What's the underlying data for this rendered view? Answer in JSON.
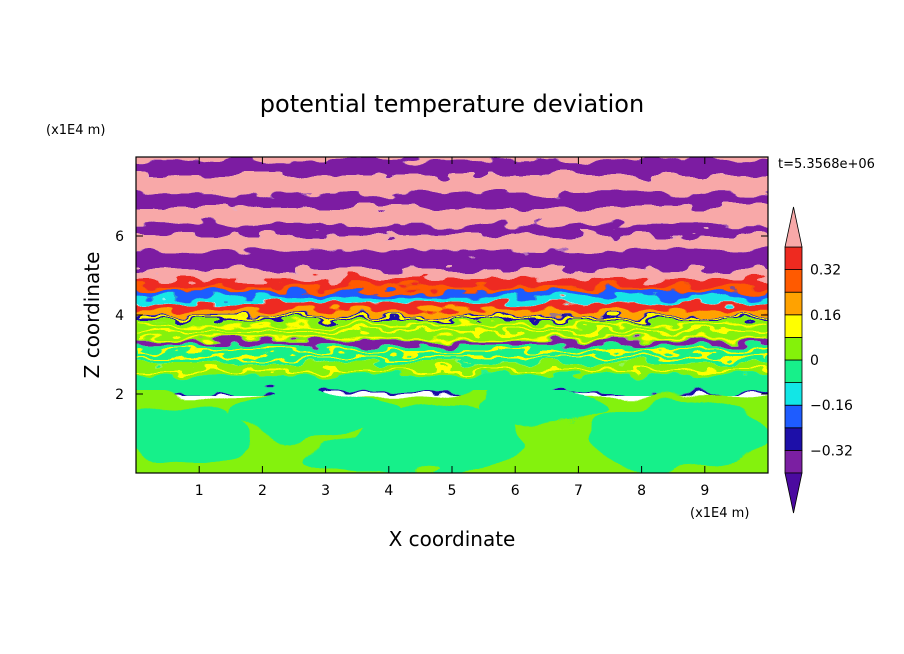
{
  "chart_data": {
    "type": "heatmap",
    "title": "potential temperature deviation",
    "xlabel": "X coordinate",
    "ylabel": "Z coordinate",
    "x_unit": "(x1E4 m)",
    "y_unit": "(x1E4 m)",
    "time_label": "t=5.3568e+06",
    "xlim": [
      0,
      10
    ],
    "ylim": [
      0,
      8
    ],
    "x_ticks": [
      "1",
      "2",
      "3",
      "4",
      "5",
      "6",
      "7",
      "8",
      "9"
    ],
    "y_ticks": [
      "2",
      "4",
      "6"
    ],
    "colorbar": {
      "extend": "both",
      "tick_labels": [
        "0.32",
        "0.16",
        "0",
        "-0.16",
        "-0.32"
      ],
      "levels": [
        -0.4,
        -0.32,
        -0.24,
        -0.16,
        -0.08,
        0,
        0.08,
        0.16,
        0.24,
        0.32,
        0.4
      ],
      "colors": [
        "#4b0aa0",
        "#7b1fa2",
        "#1d0fa8",
        "#1e5cff",
        "#12e6e6",
        "#17f08a",
        "#84f20a",
        "#ffff00",
        "#ffa200",
        "#ff5a00",
        "#ee2a20",
        "#f8a8a8"
      ]
    },
    "bands": [
      {
        "z_range": [
          0,
          2
        ],
        "dominant": [
          "0",
          "-0.08"
        ]
      },
      {
        "z_range": [
          2,
          4
        ],
        "dominant": [
          "0",
          "0.08"
        ]
      },
      {
        "z_range": [
          4,
          5.5
        ],
        "dominant": [
          "0.4",
          "-0.4",
          "0.32"
        ]
      },
      {
        "z_range": [
          5.5,
          8
        ],
        "dominant": [
          "0.4",
          "-0.4"
        ]
      }
    ]
  }
}
